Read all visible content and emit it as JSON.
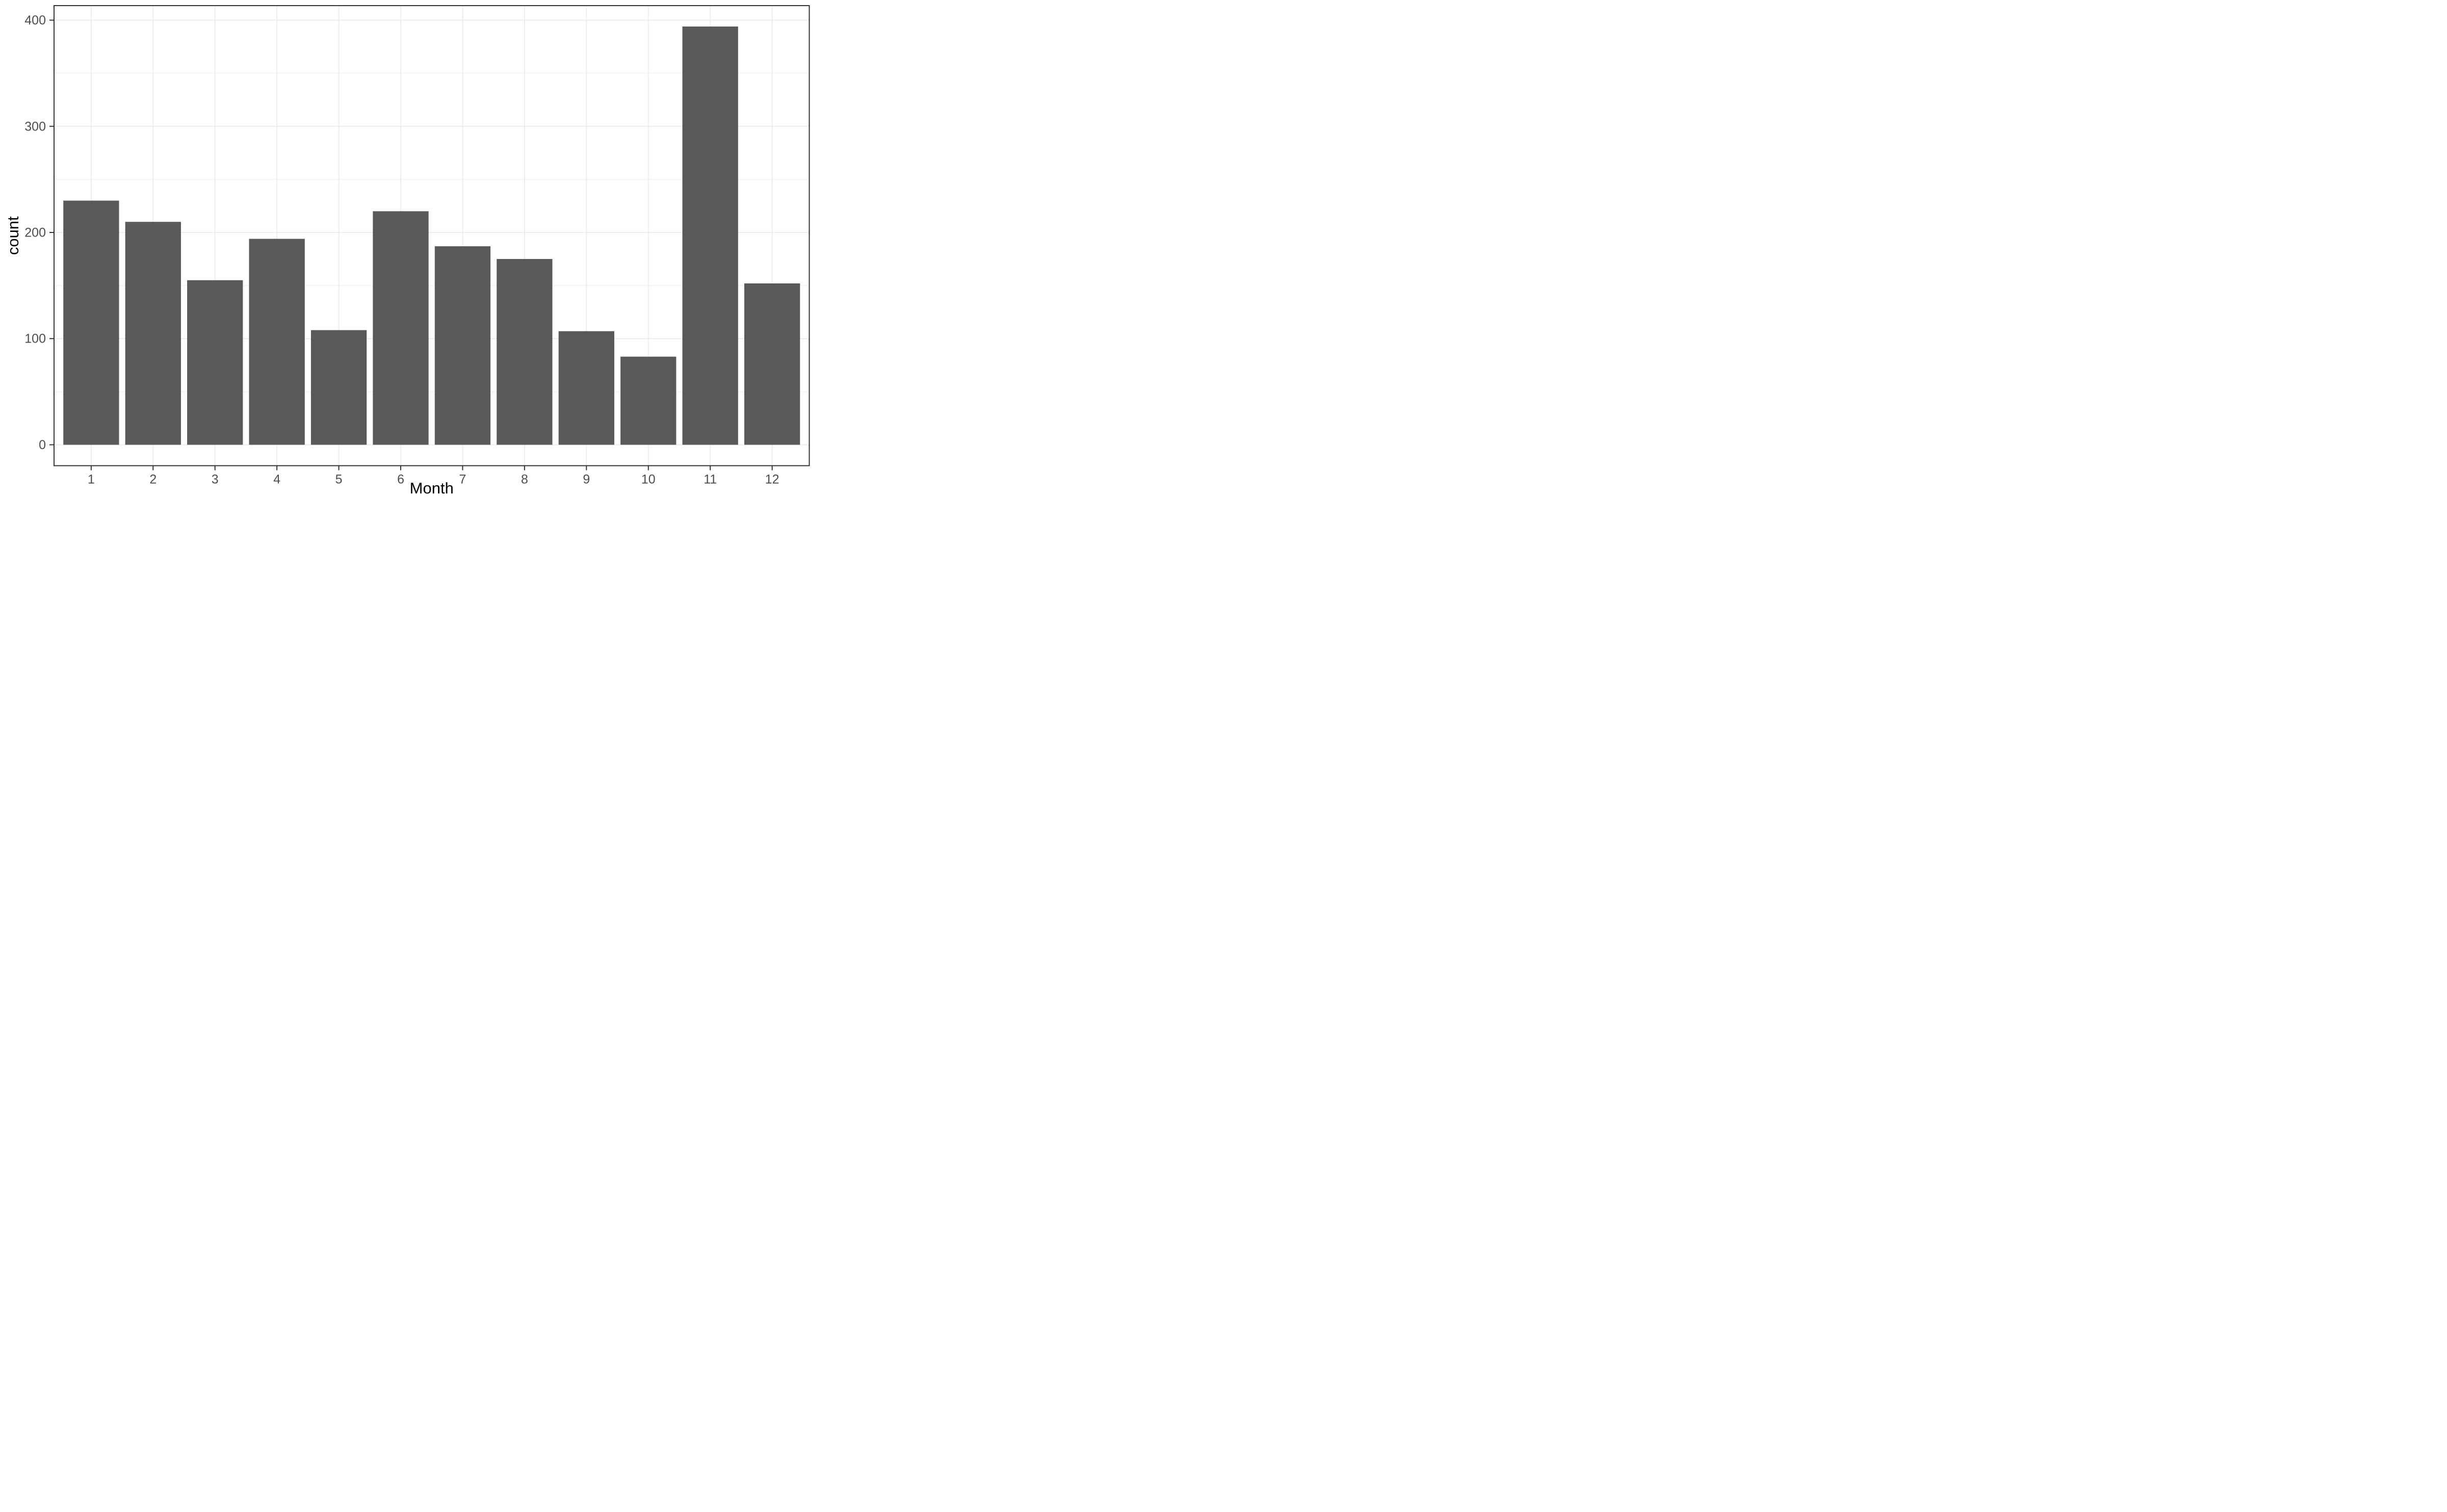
{
  "chart_data": {
    "type": "bar",
    "title": "",
    "xlabel": "Month",
    "ylabel": "count",
    "categories": [
      "1",
      "2",
      "3",
      "4",
      "5",
      "6",
      "7",
      "8",
      "9",
      "10",
      "11",
      "12"
    ],
    "values": [
      230,
      210,
      155,
      194,
      108,
      220,
      187,
      175,
      107,
      83,
      394,
      152
    ],
    "y_major_ticks": [
      0,
      100,
      200,
      300,
      400
    ],
    "y_major_tick_labels": [
      "0",
      "100",
      "200",
      "300",
      "400"
    ],
    "y_minor_ticks": [
      50,
      150,
      250,
      350
    ],
    "ylim": [
      0,
      394
    ],
    "y_expansion_mult": 0.05,
    "bar_width_fraction": 0.9,
    "x_discrete_expansion": 0.6,
    "grid": "major-and-minor-y, major-x-at-categories",
    "legend_position": "none",
    "theme": "ggplot2-theme-bw",
    "colors": {
      "bar_fill": "#595959",
      "gridline": "#EBEBEB",
      "panel_border": "#333333",
      "tick_mark": "#333333",
      "tick_label": "#4D4D4D",
      "axis_title": "#000000",
      "background": "#FFFFFF"
    }
  }
}
